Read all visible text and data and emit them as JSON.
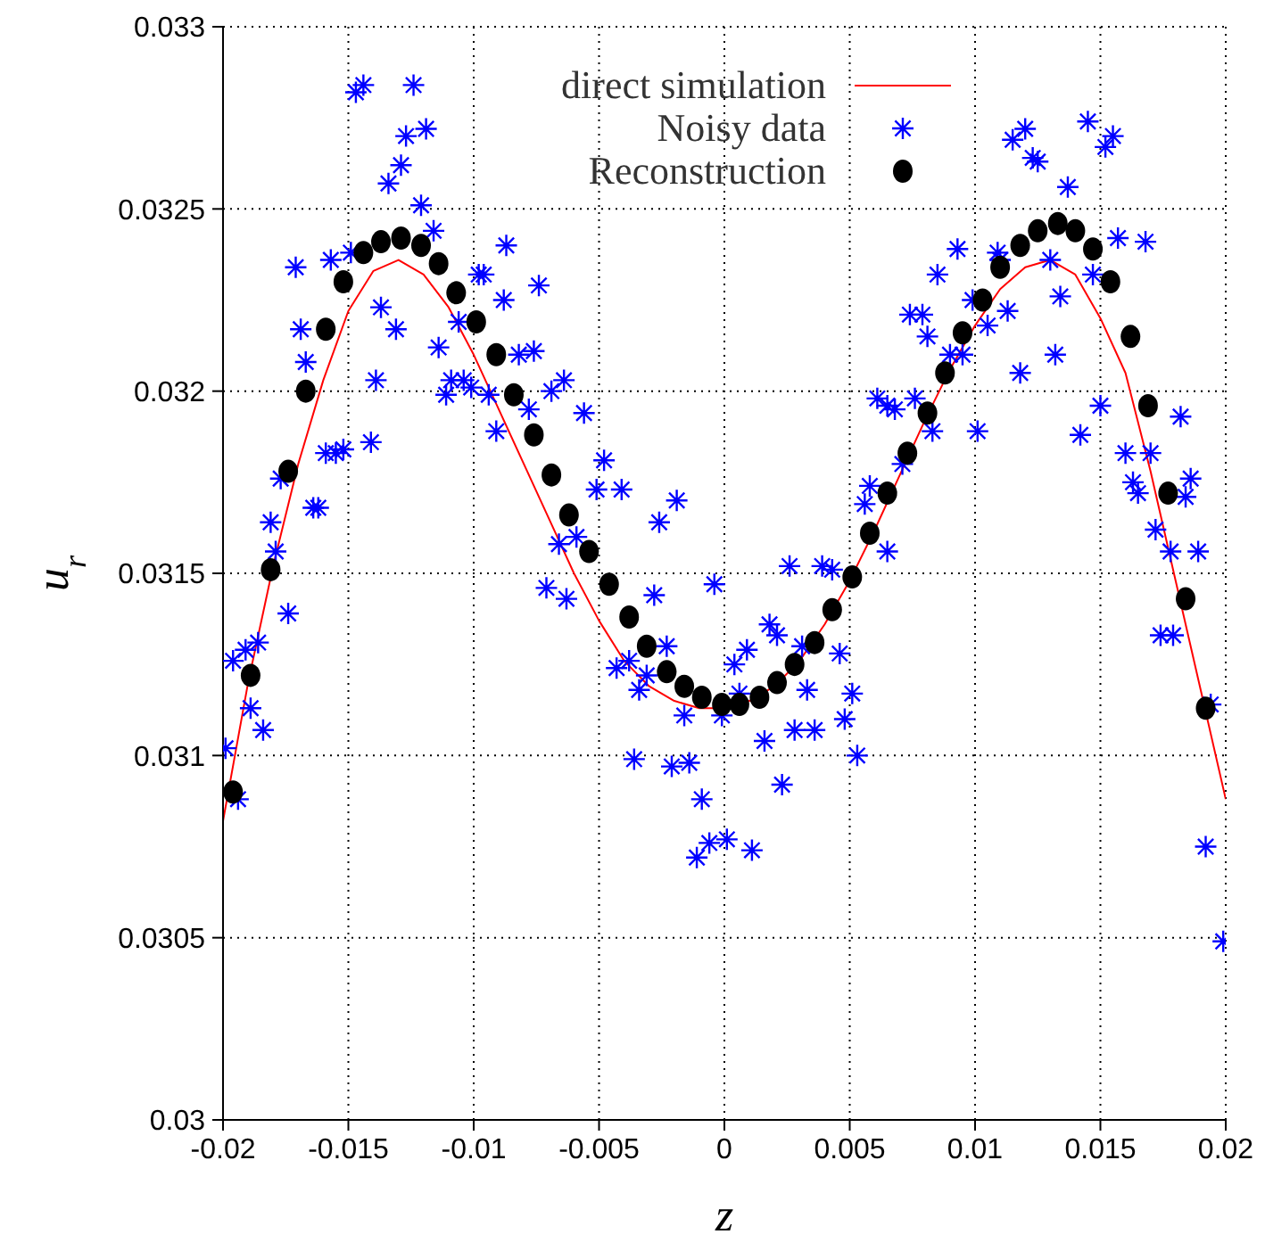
{
  "chart_data": {
    "type": "scatter",
    "xlabel": "z",
    "ylabel": "u$_{r}$",
    "xlim": [
      -0.02,
      0.02
    ],
    "ylim": [
      0.03,
      0.033
    ],
    "xticks": [
      -0.02,
      -0.015,
      -0.01,
      -0.005,
      0,
      0.005,
      0.01,
      0.015,
      0.02
    ],
    "yticks": [
      0.03,
      0.0305,
      0.031,
      0.0315,
      0.032,
      0.0325,
      0.033
    ],
    "grid": true,
    "legend": "top right",
    "series": [
      {
        "name": "direct simulation",
        "type": "line",
        "color": "#ff0000",
        "marker": "none",
        "line_style": "solid",
        "x": [
          -0.02,
          -0.019,
          -0.018,
          -0.017,
          -0.016,
          -0.015,
          -0.014,
          -0.013,
          -0.012,
          -0.011,
          -0.01,
          -0.009,
          -0.008,
          -0.007,
          -0.006,
          -0.005,
          -0.004,
          -0.003,
          -0.002,
          -0.001,
          0,
          0.001,
          0.002,
          0.003,
          0.004,
          0.005,
          0.006,
          0.007,
          0.008,
          0.009,
          0.01,
          0.011,
          0.012,
          0.013,
          0.014,
          0.015,
          0.016,
          0.017,
          0.018,
          0.019,
          0.02
        ],
        "values": [
          0.03082,
          0.0312,
          0.03152,
          0.0318,
          0.03203,
          0.03222,
          0.03233,
          0.03236,
          0.03232,
          0.03223,
          0.0321,
          0.03195,
          0.0318,
          0.03165,
          0.0315,
          0.03137,
          0.03126,
          0.03119,
          0.03115,
          0.03113,
          0.03113,
          0.03115,
          0.03119,
          0.03126,
          0.03136,
          0.03148,
          0.03162,
          0.03177,
          0.03192,
          0.03206,
          0.03218,
          0.03228,
          0.03234,
          0.03236,
          0.03232,
          0.0322,
          0.03205,
          0.03178,
          0.03148,
          0.03118,
          0.03088
        ]
      },
      {
        "name": "Noisy data",
        "color": "#0000ff",
        "marker": "cross",
        "x": [
          -0.0199,
          -0.0194,
          -0.0196,
          -0.0191,
          -0.0186,
          -0.0189,
          -0.0184,
          -0.0174,
          -0.0181,
          -0.0179,
          -0.0177,
          -0.0171,
          -0.0169,
          -0.0167,
          -0.0164,
          -0.0162,
          -0.0159,
          -0.0155,
          -0.0152,
          -0.0157,
          -0.0149,
          -0.0147,
          -0.0144,
          -0.0141,
          -0.0139,
          -0.0137,
          -0.0134,
          -0.0131,
          -0.0129,
          -0.0127,
          -0.0124,
          -0.0119,
          -0.0121,
          -0.0116,
          -0.0114,
          -0.0111,
          -0.0109,
          -0.0106,
          -0.0104,
          -0.0101,
          -0.0098,
          -0.0096,
          -0.0094,
          -0.0091,
          -0.0088,
          -0.0087,
          -0.0082,
          -0.0078,
          -0.0076,
          -0.0074,
          -0.0069,
          -0.0066,
          -0.0071,
          -0.0063,
          -0.0064,
          -0.0056,
          -0.0048,
          -0.0051,
          -0.0041,
          -0.0059,
          -0.0028,
          -0.0026,
          -0.0019,
          -0.0004,
          -0.0043,
          -0.0038,
          -0.0031,
          -0.0034,
          -0.0023,
          -0.0036,
          -0.0016,
          -0.0021,
          -0.0014,
          -0.0009,
          -0.0011,
          -0.0006,
          0.0001,
          0.0011,
          -0.0001,
          0.0004,
          0.0009,
          0.0006,
          0.0016,
          0.0018,
          0.0021,
          0.0023,
          0.0026,
          0.0031,
          0.0033,
          0.0028,
          0.0036,
          0.0039,
          0.0043,
          0.0046,
          0.0048,
          0.0051,
          0.0053,
          0.0056,
          0.0058,
          0.0061,
          0.0065,
          0.0065,
          0.0068,
          0.0071,
          0.0076,
          0.0083,
          0.0074,
          0.0079,
          0.0081,
          0.0085,
          0.0093,
          0.009,
          0.0095,
          0.0099,
          0.0101,
          0.0105,
          0.0109,
          0.011,
          0.0113,
          0.0118,
          0.0115,
          0.012,
          0.0123,
          0.0125,
          0.013,
          0.0132,
          0.0134,
          0.0137,
          0.0142,
          0.0145,
          0.0147,
          0.015,
          0.0152,
          0.0155,
          0.0157,
          0.016,
          0.0163,
          0.0165,
          0.0168,
          0.017,
          0.0172,
          0.0174,
          0.0178,
          0.0179,
          0.0182,
          0.0184,
          0.0186,
          0.0189,
          0.0194,
          0.0192,
          0.0199
        ],
        "values": [
          0.03102,
          0.03088,
          0.03126,
          0.03129,
          0.03131,
          0.03113,
          0.03107,
          0.03139,
          0.03164,
          0.03156,
          0.03176,
          0.03234,
          0.03217,
          0.03208,
          0.03168,
          0.03168,
          0.03183,
          0.03183,
          0.03184,
          0.03236,
          0.03238,
          0.03282,
          0.03284,
          0.03186,
          0.03203,
          0.03223,
          0.03257,
          0.03217,
          0.03262,
          0.0327,
          0.03284,
          0.03272,
          0.03251,
          0.03244,
          0.03212,
          0.03199,
          0.03203,
          0.03219,
          0.03203,
          0.03201,
          0.03232,
          0.03232,
          0.03199,
          0.03189,
          0.03225,
          0.0324,
          0.0321,
          0.03195,
          0.03211,
          0.03229,
          0.032,
          0.03158,
          0.03146,
          0.03143,
          0.03203,
          0.03194,
          0.03181,
          0.03173,
          0.03173,
          0.0316,
          0.03144,
          0.03164,
          0.0317,
          0.03147,
          0.03124,
          0.03126,
          0.03122,
          0.03118,
          0.0313,
          0.03099,
          0.03111,
          0.03097,
          0.03098,
          0.03088,
          0.03072,
          0.03076,
          0.03077,
          0.03074,
          0.03111,
          0.03125,
          0.03129,
          0.03117,
          0.03104,
          0.03136,
          0.03133,
          0.03092,
          0.03152,
          0.0313,
          0.03118,
          0.03107,
          0.03107,
          0.03152,
          0.03151,
          0.03128,
          0.0311,
          0.03117,
          0.031,
          0.03169,
          0.03174,
          0.03198,
          0.03196,
          0.03156,
          0.03195,
          0.0318,
          0.03198,
          0.03189,
          0.03221,
          0.03221,
          0.03215,
          0.03232,
          0.03239,
          0.0321,
          0.0321,
          0.03225,
          0.03189,
          0.03218,
          0.03238,
          0.03236,
          0.03222,
          0.03205,
          0.03269,
          0.03272,
          0.03264,
          0.03263,
          0.03236,
          0.0321,
          0.03226,
          0.03256,
          0.03188,
          0.03274,
          0.03232,
          0.03196,
          0.03267,
          0.0327,
          0.03242,
          0.03183,
          0.03175,
          0.03172,
          0.03241,
          0.03183,
          0.03162,
          0.03133,
          0.03156,
          0.03133,
          0.03193,
          0.03171,
          0.03176,
          0.03156,
          0.03114,
          0.03075,
          0.03049
        ]
      },
      {
        "name": "Reconstruction",
        "color": "#000000",
        "marker": "circle",
        "x": [
          -0.0196,
          -0.0189,
          -0.0181,
          -0.0174,
          -0.0167,
          -0.0159,
          -0.0152,
          -0.0144,
          -0.0137,
          -0.0129,
          -0.0121,
          -0.0114,
          -0.0107,
          -0.0099,
          -0.0091,
          -0.0084,
          -0.0076,
          -0.0069,
          -0.0062,
          -0.0054,
          -0.0046,
          -0.0038,
          -0.0031,
          -0.0023,
          -0.0016,
          -0.0009,
          -0.0001,
          0.0006,
          0.0014,
          0.0021,
          0.0028,
          0.0036,
          0.0043,
          0.0051,
          0.0058,
          0.0065,
          0.0073,
          0.0081,
          0.0088,
          0.0095,
          0.0103,
          0.011,
          0.0118,
          0.0125,
          0.0133,
          0.014,
          0.0147,
          0.0154,
          0.0162,
          0.0169,
          0.0177,
          0.0184,
          0.0192
        ],
        "values": [
          0.0309,
          0.03122,
          0.03151,
          0.03178,
          0.032,
          0.03217,
          0.0323,
          0.03238,
          0.03241,
          0.03242,
          0.0324,
          0.03235,
          0.03227,
          0.03219,
          0.0321,
          0.03199,
          0.03188,
          0.03177,
          0.03166,
          0.03156,
          0.03147,
          0.03138,
          0.0313,
          0.03123,
          0.03119,
          0.03116,
          0.03114,
          0.03114,
          0.03116,
          0.0312,
          0.03125,
          0.03131,
          0.0314,
          0.03149,
          0.03161,
          0.03172,
          0.03183,
          0.03194,
          0.03205,
          0.03216,
          0.03225,
          0.03234,
          0.0324,
          0.03244,
          0.03246,
          0.03244,
          0.03239,
          0.0323,
          0.03215,
          0.03196,
          0.03172,
          0.03143,
          0.03113
        ]
      }
    ]
  }
}
